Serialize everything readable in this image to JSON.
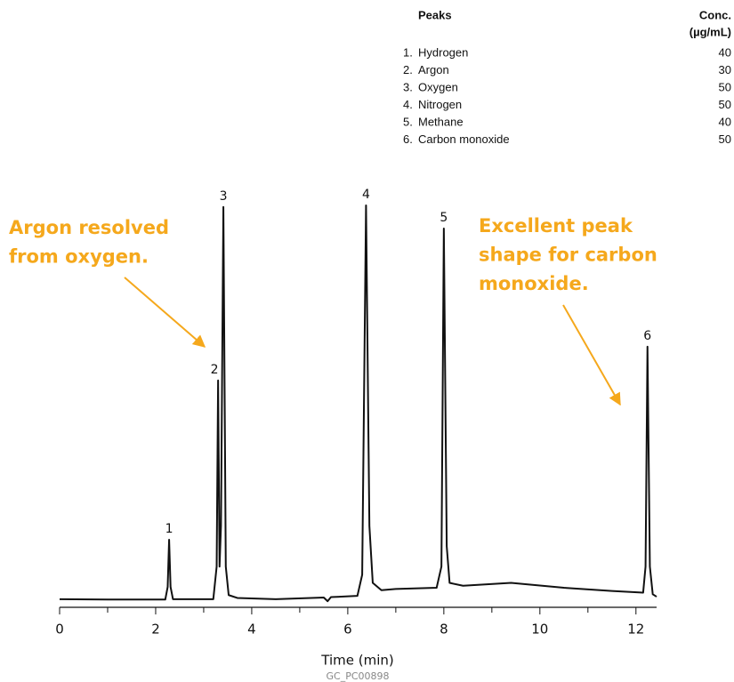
{
  "chart_data": {
    "type": "line",
    "x_label": "Time (min)",
    "footer": "GC_PC00898",
    "color": "#111111",
    "x": [
      0.0,
      1.0,
      2.2,
      2.25,
      2.28,
      2.31,
      2.36,
      3.2,
      3.27,
      3.3,
      3.33,
      3.36,
      3.41,
      3.46,
      3.52,
      3.7,
      4.5,
      5.5,
      5.58,
      5.65,
      6.2,
      6.3,
      6.38,
      6.45,
      6.52,
      6.7,
      7.0,
      7.85,
      7.95,
      8.0,
      8.06,
      8.12,
      8.4,
      9.4,
      10.5,
      11.5,
      12.15,
      12.2,
      12.24,
      12.29,
      12.35,
      12.43
    ],
    "values": [
      2.0,
      1.9,
      1.9,
      5,
      16.6,
      5,
      2.0,
      2.0,
      10,
      55.7,
      10,
      20,
      98.3,
      10,
      3,
      2.3,
      2.0,
      2.4,
      1.5,
      2.5,
      2.8,
      8,
      98.7,
      20,
      6,
      4.2,
      4.5,
      4.8,
      10,
      93,
      15,
      6,
      5.3,
      6.0,
      4.8,
      4.0,
      3.6,
      10,
      64,
      10,
      3.2,
      2.6
    ],
    "xlim": [
      0,
      12.43
    ],
    "ylim": [
      0,
      100
    ],
    "xticks": [
      0,
      2,
      4,
      6,
      8,
      10,
      12
    ],
    "xminor_ticks": [
      1,
      3,
      5,
      7,
      9,
      11
    ],
    "peaks": [
      {
        "label": "1",
        "x": 2.28,
        "y": 16.6
      },
      {
        "label": "2",
        "x": 3.3,
        "y": 55.7
      },
      {
        "label": "3",
        "x": 3.41,
        "y": 98.3
      },
      {
        "label": "4",
        "x": 6.38,
        "y": 98.7
      },
      {
        "label": "5",
        "x": 8.0,
        "y": 93
      },
      {
        "label": "6",
        "x": 12.24,
        "y": 64
      }
    ],
    "annotations": [
      {
        "lines": [
          "Argon resolved",
          "from oxygen."
        ],
        "color": "#f5a81c"
      },
      {
        "lines": [
          "Excellent peak",
          "shape for carbon",
          "monoxide."
        ],
        "color": "#f5a81c"
      }
    ],
    "table": {
      "peaks_header": "Peaks",
      "conc_header": [
        "Conc.",
        "(µg/mL)"
      ],
      "rows": [
        [
          "1.",
          "Hydrogen",
          40
        ],
        [
          "2.",
          "Argon",
          30
        ],
        [
          "3.",
          "Oxygen",
          50
        ],
        [
          "4.",
          "Nitrogen",
          50
        ],
        [
          "5.",
          "Methane",
          40
        ],
        [
          "6.",
          "Carbon monoxide",
          50
        ]
      ]
    }
  }
}
